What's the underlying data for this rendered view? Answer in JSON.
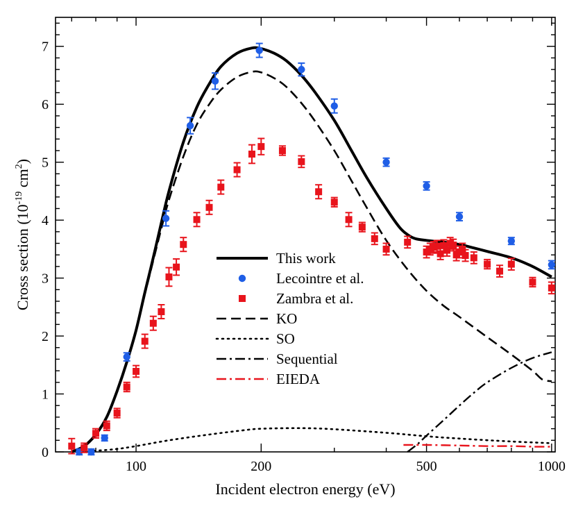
{
  "chart_data": {
    "type": "line",
    "title": "",
    "xlabel": "Incident electron energy (eV)",
    "ylabel_main": "Cross section (10",
    "ylabel_exp": "-19",
    "ylabel_unit": " cm",
    "ylabel_unit_exp": "2",
    "ylabel_close": ")",
    "xscale": "log",
    "xlim": [
      64,
      1020
    ],
    "ylim": [
      0,
      7.5
    ],
    "x_ticks": [
      100,
      200,
      500,
      1000
    ],
    "x_tick_labels": [
      "100",
      "200",
      "500",
      "1000"
    ],
    "y_ticks": [
      0,
      1,
      2,
      3,
      4,
      5,
      6,
      7
    ],
    "y_tick_labels": [
      "0",
      "1",
      "2",
      "3",
      "4",
      "5",
      "6",
      "7"
    ],
    "legend_position": "center",
    "series": [
      {
        "name": "This work",
        "kind": "line",
        "style": "solid",
        "color": "#000000",
        "x": [
          70,
          75,
          80,
          85,
          90,
          95,
          100,
          105,
          110,
          115,
          120,
          130,
          140,
          150,
          160,
          175,
          190,
          200,
          215,
          230,
          250,
          270,
          300,
          330,
          360,
          400,
          430,
          450,
          470,
          500,
          550,
          600,
          650,
          700,
          800,
          900,
          1000
        ],
        "y": [
          0.0,
          0.1,
          0.3,
          0.6,
          1.05,
          1.55,
          2.1,
          2.75,
          3.35,
          3.95,
          4.5,
          5.35,
          5.95,
          6.35,
          6.65,
          6.88,
          6.97,
          6.96,
          6.88,
          6.75,
          6.5,
          6.2,
          5.72,
          5.2,
          4.72,
          4.2,
          3.88,
          3.75,
          3.68,
          3.65,
          3.62,
          3.58,
          3.52,
          3.46,
          3.35,
          3.2,
          3.02
        ]
      },
      {
        "name": "Lecointre et al.",
        "kind": "points",
        "marker": "circle",
        "color": "#1f5ee6",
        "x": [
          73,
          78,
          84,
          95,
          118,
          135,
          155,
          198,
          250,
          300,
          400,
          500,
          600,
          800,
          1000
        ],
        "y": [
          0.0,
          0.0,
          0.24,
          1.64,
          4.03,
          5.63,
          6.4,
          6.93,
          6.6,
          5.97,
          5.0,
          4.59,
          4.06,
          3.64,
          3.23
        ],
        "err": [
          0.05,
          0.05,
          0.05,
          0.07,
          0.13,
          0.14,
          0.14,
          0.12,
          0.11,
          0.12,
          0.07,
          0.07,
          0.07,
          0.06,
          0.07
        ]
      },
      {
        "name": "Zambra et al.",
        "kind": "points",
        "marker": "square",
        "color": "#e8141c",
        "x": [
          70,
          75,
          80,
          85,
          90,
          95,
          100,
          105,
          110,
          115,
          120,
          125,
          130,
          140,
          150,
          160,
          175,
          190,
          200,
          225,
          250,
          275,
          300,
          325,
          350,
          375,
          400,
          450,
          500,
          510,
          520,
          530,
          540,
          550,
          560,
          570,
          580,
          590,
          600,
          610,
          620,
          650,
          700,
          750,
          800,
          900,
          1000
        ],
        "y": [
          0.1,
          0.07,
          0.32,
          0.45,
          0.67,
          1.12,
          1.39,
          1.91,
          2.22,
          2.42,
          3.02,
          3.19,
          3.58,
          4.01,
          4.22,
          4.57,
          4.87,
          5.14,
          5.27,
          5.2,
          5.01,
          4.49,
          4.31,
          4.01,
          3.88,
          3.68,
          3.5,
          3.62,
          3.45,
          3.5,
          3.53,
          3.55,
          3.42,
          3.56,
          3.48,
          3.6,
          3.57,
          3.4,
          3.45,
          3.5,
          3.39,
          3.35,
          3.24,
          3.12,
          3.24,
          2.93,
          2.83
        ],
        "err": [
          0.13,
          0.08,
          0.08,
          0.08,
          0.08,
          0.08,
          0.1,
          0.12,
          0.12,
          0.12,
          0.16,
          0.14,
          0.12,
          0.12,
          0.12,
          0.12,
          0.12,
          0.16,
          0.14,
          0.08,
          0.1,
          0.12,
          0.08,
          0.12,
          0.08,
          0.1,
          0.1,
          0.1,
          0.1,
          0.1,
          0.1,
          0.1,
          0.1,
          0.1,
          0.1,
          0.1,
          0.1,
          0.1,
          0.1,
          0.1,
          0.1,
          0.1,
          0.08,
          0.1,
          0.1,
          0.08,
          0.1
        ]
      },
      {
        "name": "KO",
        "kind": "line",
        "style": "dashed",
        "color": "#000000",
        "x": [
          70,
          75,
          80,
          85,
          90,
          95,
          100,
          105,
          110,
          115,
          120,
          130,
          140,
          150,
          160,
          175,
          190,
          200,
          215,
          230,
          250,
          270,
          300,
          330,
          360,
          400,
          450,
          500,
          550,
          600,
          700,
          800,
          900,
          950,
          1000
        ],
        "y": [
          0.0,
          0.1,
          0.3,
          0.6,
          1.05,
          1.55,
          2.1,
          2.72,
          3.3,
          3.85,
          4.35,
          5.1,
          5.65,
          6.0,
          6.25,
          6.47,
          6.56,
          6.55,
          6.45,
          6.3,
          6.02,
          5.7,
          5.2,
          4.68,
          4.2,
          3.65,
          3.15,
          2.78,
          2.52,
          2.33,
          1.98,
          1.68,
          1.4,
          1.25,
          1.22
        ]
      },
      {
        "name": "SO",
        "kind": "line",
        "style": "dotted",
        "color": "#000000",
        "x": [
          70,
          80,
          90,
          100,
          120,
          150,
          180,
          200,
          250,
          300,
          400,
          500,
          600,
          800,
          1000
        ],
        "y": [
          0.0,
          0.02,
          0.05,
          0.1,
          0.2,
          0.3,
          0.37,
          0.4,
          0.41,
          0.39,
          0.33,
          0.27,
          0.23,
          0.18,
          0.15
        ]
      },
      {
        "name": "Sequential",
        "kind": "line",
        "style": "dashdot",
        "color": "#000000",
        "x": [
          450,
          475,
          500,
          550,
          600,
          650,
          700,
          800,
          900,
          1000
        ],
        "y": [
          0.0,
          0.13,
          0.28,
          0.55,
          0.8,
          1.02,
          1.2,
          1.45,
          1.62,
          1.72
        ]
      },
      {
        "name": "EIEDA",
        "kind": "line",
        "style": "dashdot",
        "color": "#e8141c",
        "x": [
          440,
          500,
          600,
          700,
          800,
          900,
          1000
        ],
        "y": [
          0.12,
          0.12,
          0.11,
          0.1,
          0.1,
          0.09,
          0.09
        ]
      }
    ]
  }
}
